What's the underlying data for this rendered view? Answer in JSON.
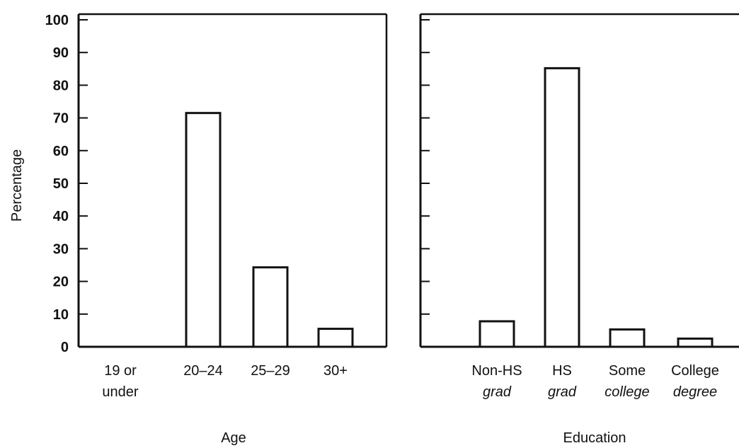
{
  "chart_data": [
    {
      "type": "bar",
      "categories": [
        {
          "line1": "19 or",
          "line2": "under"
        },
        {
          "line1": "20–24",
          "line2": ""
        },
        {
          "line1": "25–29",
          "line2": ""
        },
        {
          "line1": "30+",
          "line2": ""
        }
      ],
      "values": [
        0,
        71.5,
        24.3,
        5.5
      ],
      "title": "",
      "xlabel": "Age",
      "ylabel": "Percentage",
      "ylim": [
        0,
        100
      ],
      "yticks": [
        "0",
        "10",
        "20",
        "30",
        "40",
        "50",
        "60",
        "70",
        "80",
        "90",
        "100"
      ],
      "grid": false,
      "bar_fill": "#ffffff",
      "bar_stroke": "#111111"
    },
    {
      "type": "bar",
      "categories": [
        {
          "line1": "Non-HS",
          "line2": "grad"
        },
        {
          "line1": "HS",
          "line2": "grad"
        },
        {
          "line1": "Some",
          "line2": "college"
        },
        {
          "line1": "College",
          "line2": "degree"
        }
      ],
      "values": [
        7.8,
        85.2,
        5.3,
        2.5
      ],
      "title": "",
      "xlabel": "Education",
      "ylabel": "",
      "ylim": [
        0,
        100
      ],
      "grid": false,
      "bar_fill": "#ffffff",
      "bar_stroke": "#111111"
    }
  ]
}
